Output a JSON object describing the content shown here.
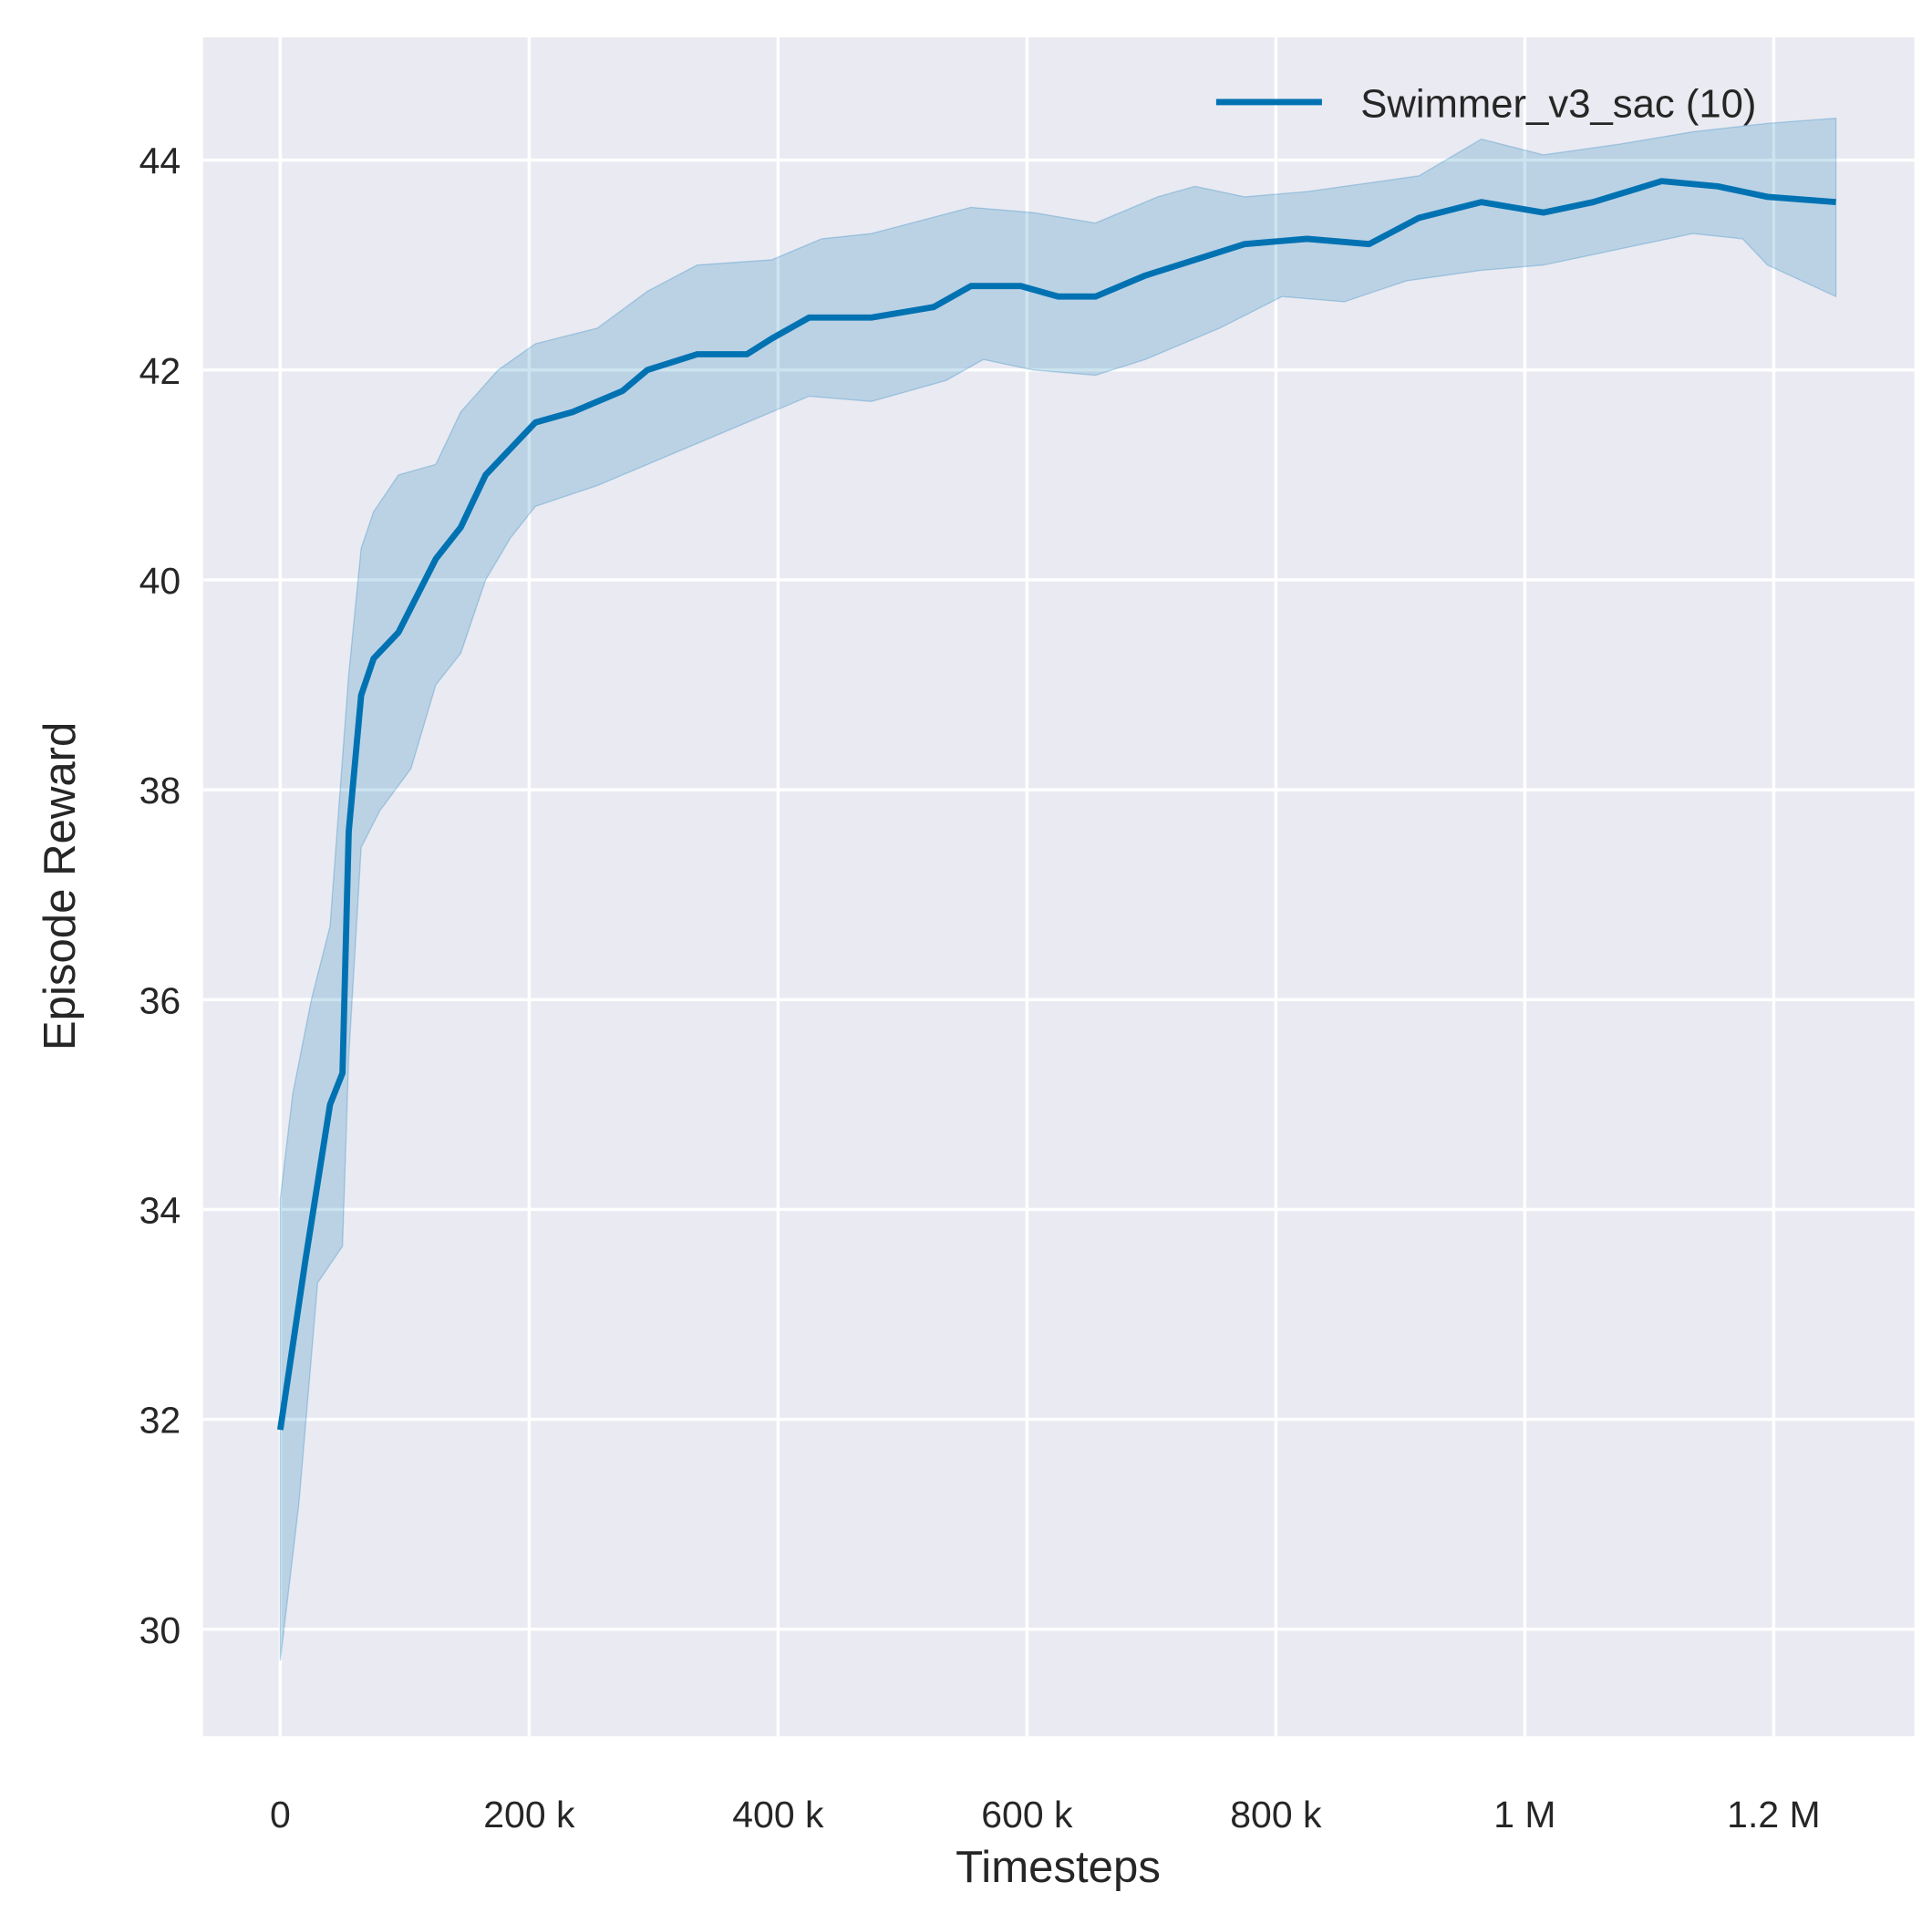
{
  "chart_data": {
    "type": "line",
    "title": "",
    "xlabel": "Timesteps",
    "ylabel": "Episode Reward",
    "xlim": [
      -62000,
      1313000
    ],
    "ylim": [
      28.98,
      45.17
    ],
    "grid": true,
    "legend_placement": "top-right",
    "background_color": "#eaeaf2",
    "grid_color": "#ffffff",
    "x_ticks": [
      0,
      200000,
      400000,
      600000,
      800000,
      1000000,
      1200000
    ],
    "x_tick_labels": [
      "0",
      "200 k",
      "400 k",
      "600 k",
      "800 k",
      "1 M",
      "1.2 M"
    ],
    "y_ticks": [
      30,
      32,
      34,
      36,
      38,
      40,
      42,
      44
    ],
    "y_tick_labels": [
      "30",
      "32",
      "34",
      "36",
      "38",
      "40",
      "42",
      "44"
    ],
    "series": [
      {
        "name": "Swimmer_v3_sac (10)",
        "color": "#0072b2",
        "band_color": "#0072b2",
        "mean": [
          [
            0,
            31.9
          ],
          [
            20000,
            33.5
          ],
          [
            40000,
            35.0
          ],
          [
            50000,
            35.3
          ],
          [
            55000,
            37.6
          ],
          [
            65000,
            38.9
          ],
          [
            75000,
            39.25
          ],
          [
            95000,
            39.5
          ],
          [
            125000,
            40.2
          ],
          [
            145000,
            40.5
          ],
          [
            165000,
            41.0
          ],
          [
            185000,
            41.25
          ],
          [
            205000,
            41.5
          ],
          [
            235000,
            41.6
          ],
          [
            275000,
            41.8
          ],
          [
            295000,
            42.0
          ],
          [
            335000,
            42.15
          ],
          [
            375000,
            42.15
          ],
          [
            395000,
            42.3
          ],
          [
            425000,
            42.5
          ],
          [
            475000,
            42.5
          ],
          [
            525000,
            42.6
          ],
          [
            555000,
            42.8
          ],
          [
            595000,
            42.8
          ],
          [
            625000,
            42.7
          ],
          [
            655000,
            42.7
          ],
          [
            695000,
            42.9
          ],
          [
            775000,
            43.2
          ],
          [
            825000,
            43.25
          ],
          [
            875000,
            43.2
          ],
          [
            915000,
            43.45
          ],
          [
            965000,
            43.6
          ],
          [
            1015000,
            43.5
          ],
          [
            1055000,
            43.6
          ],
          [
            1110000,
            43.8
          ],
          [
            1155000,
            43.75
          ],
          [
            1195000,
            43.65
          ],
          [
            1250000,
            43.6
          ]
        ],
        "lower": [
          [
            0,
            29.7
          ],
          [
            15000,
            31.2
          ],
          [
            30000,
            33.3
          ],
          [
            50000,
            33.65
          ],
          [
            55000,
            35.45
          ],
          [
            65000,
            37.45
          ],
          [
            80000,
            37.8
          ],
          [
            105000,
            38.2
          ],
          [
            125000,
            39.0
          ],
          [
            145000,
            39.3
          ],
          [
            165000,
            40.0
          ],
          [
            185000,
            40.4
          ],
          [
            205000,
            40.7
          ],
          [
            255000,
            40.9
          ],
          [
            295000,
            41.1
          ],
          [
            335000,
            41.3
          ],
          [
            375000,
            41.5
          ],
          [
            425000,
            41.75
          ],
          [
            475000,
            41.7
          ],
          [
            535000,
            41.9
          ],
          [
            565000,
            42.1
          ],
          [
            605000,
            42.0
          ],
          [
            655000,
            41.95
          ],
          [
            695000,
            42.1
          ],
          [
            755000,
            42.4
          ],
          [
            805000,
            42.7
          ],
          [
            855000,
            42.65
          ],
          [
            905000,
            42.85
          ],
          [
            965000,
            42.95
          ],
          [
            1015000,
            43.0
          ],
          [
            1075000,
            43.15
          ],
          [
            1135000,
            43.3
          ],
          [
            1175000,
            43.25
          ],
          [
            1195000,
            43.0
          ],
          [
            1250000,
            42.7
          ]
        ],
        "upper": [
          [
            0,
            34.1
          ],
          [
            10000,
            35.1
          ],
          [
            25000,
            36.0
          ],
          [
            40000,
            36.7
          ],
          [
            55000,
            39.1
          ],
          [
            65000,
            40.3
          ],
          [
            75000,
            40.65
          ],
          [
            95000,
            41.0
          ],
          [
            125000,
            41.1
          ],
          [
            145000,
            41.6
          ],
          [
            175000,
            42.0
          ],
          [
            205000,
            42.25
          ],
          [
            255000,
            42.4
          ],
          [
            295000,
            42.75
          ],
          [
            335000,
            43.0
          ],
          [
            395000,
            43.05
          ],
          [
            435000,
            43.25
          ],
          [
            475000,
            43.3
          ],
          [
            555000,
            43.55
          ],
          [
            605000,
            43.5
          ],
          [
            655000,
            43.4
          ],
          [
            705000,
            43.65
          ],
          [
            735000,
            43.75
          ],
          [
            775000,
            43.65
          ],
          [
            825000,
            43.7
          ],
          [
            915000,
            43.85
          ],
          [
            965000,
            44.2
          ],
          [
            1015000,
            44.05
          ],
          [
            1075000,
            44.15
          ],
          [
            1135000,
            44.27
          ],
          [
            1195000,
            44.35
          ],
          [
            1250000,
            44.4
          ]
        ]
      }
    ]
  }
}
